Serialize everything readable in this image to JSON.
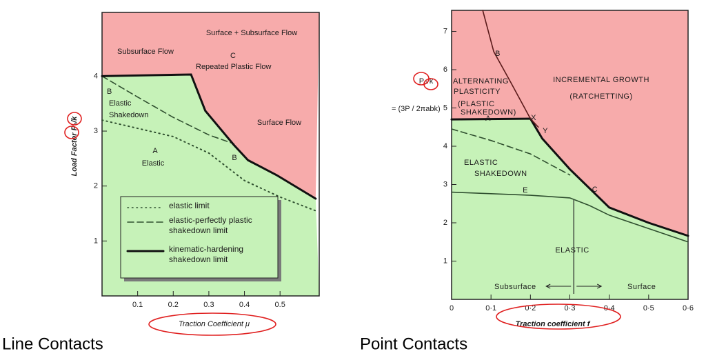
{
  "chart_data": [
    {
      "type": "line",
      "caption": "Line Contacts",
      "x_label": "Traction Coefficient  μ",
      "y_label": "Load Factor  P₀/k",
      "xlim": [
        0,
        0.61
      ],
      "ylim": [
        0,
        5.16
      ],
      "xticks": [
        0.1,
        0.2,
        0.3,
        0.4,
        0.5
      ],
      "yticks": [
        1,
        2,
        3,
        4
      ],
      "region_colors": {
        "below": "#c6f2b8",
        "above": "#f7abab"
      },
      "boundary_series": 2,
      "series": [
        {
          "name": "elastic limit",
          "color": "#2f4f2f",
          "dash": "dotted",
          "x": [
            0,
            0.1,
            0.2,
            0.3,
            0.4,
            0.5,
            0.6
          ],
          "values": [
            3.2,
            3.05,
            2.9,
            2.6,
            2.1,
            1.8,
            1.55
          ]
        },
        {
          "name": "elastic-perfectly plastic shakedown limit",
          "color": "#2f4f2f",
          "dash": "dashed",
          "x": [
            0,
            0.1,
            0.2,
            0.3,
            0.37
          ],
          "values": [
            4.0,
            3.62,
            3.25,
            2.93,
            2.77
          ]
        },
        {
          "name": "kinematic-hardening shakedown limit",
          "color": "#111111",
          "dash": "solid",
          "x": [
            0,
            0.25,
            0.29,
            0.37,
            0.41,
            0.49,
            0.6
          ],
          "values": [
            4.0,
            4.03,
            3.37,
            2.75,
            2.47,
            2.2,
            1.77
          ]
        }
      ],
      "annotations": [
        "Surface + Subsurface Flow",
        "Subsurface Flow",
        "C",
        "Repeated Plastic Flow",
        "B",
        "Elastic",
        "Shakedown",
        "Surface Flow",
        "A",
        "Elastic",
        "B"
      ]
    },
    {
      "type": "line",
      "caption": "Point Contacts",
      "x_label": "Traction coefficient  f",
      "y_label": "P₀/k",
      "y_label_note": "= (3P / 2πabk)",
      "xlim": [
        0,
        0.6
      ],
      "ylim": [
        0,
        7.55
      ],
      "xticks": [
        0,
        {
          "value": 0.1,
          "label": "0·1"
        },
        {
          "value": 0.2,
          "label": "0·2"
        },
        {
          "value": 0.3,
          "label": "0·3"
        },
        {
          "value": 0.4,
          "label": "0·4"
        },
        {
          "value": 0.5,
          "label": "0·5"
        },
        {
          "value": 0.6,
          "label": "0·6"
        }
      ],
      "yticks": [
        1,
        2,
        3,
        4,
        5,
        6,
        7
      ],
      "region_colors": {
        "below": "#c6f2b8",
        "above": "#f7abab"
      },
      "boundary_series": 0,
      "divider_x": 0.31,
      "series": [
        {
          "color": "#111111",
          "dash": "solid",
          "x": [
            0,
            0.2,
            0.23,
            0.3,
            0.4,
            0.5,
            0.6
          ],
          "values": [
            4.7,
            4.72,
            4.2,
            3.4,
            2.4,
            2.0,
            1.66
          ]
        },
        {
          "color": "#2f4f2f",
          "dash": "dashed",
          "x": [
            0,
            0.1,
            0.2,
            0.3
          ],
          "values": [
            4.45,
            4.15,
            3.8,
            3.25
          ]
        },
        {
          "color": "#2f4f2f",
          "dash": "solid",
          "x": [
            0,
            0.2,
            0.3,
            0.35,
            0.4,
            0.5,
            0.6
          ],
          "values": [
            2.8,
            2.72,
            2.65,
            2.45,
            2.2,
            1.85,
            1.5
          ]
        },
        {
          "color": "#5a1a1a",
          "dash": "solid",
          "x": [
            0.079,
            0.107,
            0.149,
            0.2,
            0.22
          ],
          "values": [
            7.55,
            6.47,
            5.69,
            4.72,
            4.5
          ]
        }
      ],
      "annotations": [
        "ALTERNATING",
        "PLASTICITY",
        "(PLASTIC",
        "SHAKEDOWN)",
        "INCREMENTAL GROWTH",
        "(RATCHETTING)",
        "B",
        "X",
        "Y",
        "A",
        "ELASTIC",
        "SHAKEDOWN",
        "C",
        "E",
        "ELASTIC",
        "Subsurface",
        "Surface"
      ]
    }
  ]
}
